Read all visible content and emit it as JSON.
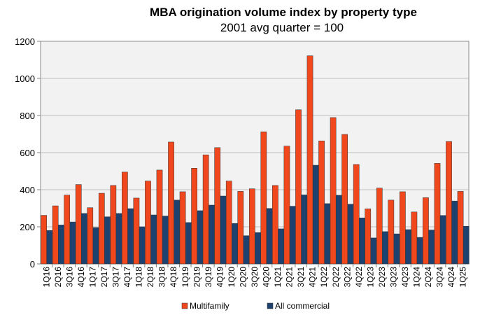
{
  "chart_data": {
    "type": "bar",
    "title": "MBA origination volume index by property type",
    "subtitle": "2001 avg quarter = 100",
    "xlabel": "",
    "ylabel": "",
    "ylim": [
      0,
      1200
    ],
    "yticks": [
      0,
      200,
      400,
      600,
      800,
      1000,
      1200
    ],
    "grid": true,
    "legend_position": "bottom",
    "categories": [
      "1Q16",
      "2Q16",
      "3Q16",
      "4Q16",
      "1Q17",
      "2Q17",
      "3Q17",
      "4Q17",
      "1Q18",
      "2Q18",
      "3Q18",
      "4Q18",
      "1Q19",
      "2Q19",
      "3Q19",
      "4Q19",
      "1Q20",
      "2Q20",
      "3Q20",
      "4Q20",
      "1Q21",
      "2Q21",
      "3Q21",
      "4Q21",
      "1Q22",
      "2Q22",
      "3Q22",
      "4Q22",
      "1Q23",
      "2Q23",
      "3Q23",
      "4Q23",
      "1Q24",
      "2Q24",
      "3Q24",
      "4Q24",
      "1Q25"
    ],
    "series": [
      {
        "name": "Multifamily",
        "color": "#F0471D",
        "values": [
          262,
          313,
          371,
          428,
          303,
          381,
          423,
          495,
          355,
          447,
          506,
          657,
          389,
          516,
          588,
          627,
          447,
          391,
          405,
          712,
          423,
          635,
          831,
          1122,
          663,
          789,
          698,
          536,
          297,
          409,
          344,
          389,
          280,
          357,
          542,
          660,
          391
        ]
      },
      {
        "name": "All commercial",
        "color": "#1E4270",
        "values": [
          180,
          210,
          226,
          272,
          196,
          254,
          272,
          298,
          200,
          264,
          258,
          344,
          223,
          287,
          317,
          366,
          218,
          152,
          169,
          299,
          189,
          311,
          372,
          532,
          325,
          370,
          322,
          248,
          140,
          174,
          162,
          185,
          143,
          183,
          261,
          339,
          203
        ]
      }
    ]
  }
}
